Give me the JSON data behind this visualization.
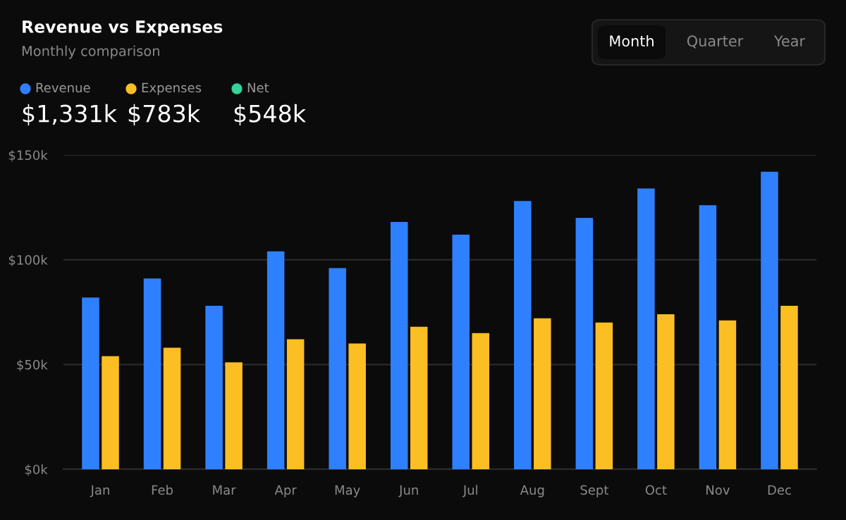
{
  "chart_data": {
    "type": "bar",
    "title": "Revenue vs Expenses",
    "subtitle": "Monthly comparison",
    "categories": [
      "Jan",
      "Feb",
      "Mar",
      "Apr",
      "May",
      "Jun",
      "Jul",
      "Aug",
      "Sept",
      "Oct",
      "Nov",
      "Dec"
    ],
    "series": [
      {
        "name": "Revenue",
        "color": "#2f80ff",
        "values": [
          82,
          91,
          78,
          104,
          96,
          118,
          112,
          128,
          120,
          134,
          126,
          142
        ]
      },
      {
        "name": "Expenses",
        "color": "#fbbf24",
        "values": [
          54,
          58,
          51,
          62,
          60,
          68,
          65,
          72,
          70,
          74,
          71,
          78
        ]
      },
      {
        "name": "Net",
        "color": "#34d399",
        "values": [
          null,
          null,
          null,
          null,
          null,
          null,
          null,
          null,
          null,
          null,
          null,
          null
        ]
      }
    ],
    "annotations": [
      "$1,331k",
      "$783k",
      "$548k",
      "Month",
      "Quarter",
      "Year"
    ],
    "ylim": [
      0,
      150
    ],
    "yticks": [
      {
        "value": 0,
        "label": "$0k"
      },
      {
        "value": 50,
        "label": "$50k"
      },
      {
        "value": 100,
        "label": "$100k"
      },
      {
        "value": 150,
        "label": "$150k"
      }
    ],
    "grid": "y",
    "legend": "top left"
  }
}
